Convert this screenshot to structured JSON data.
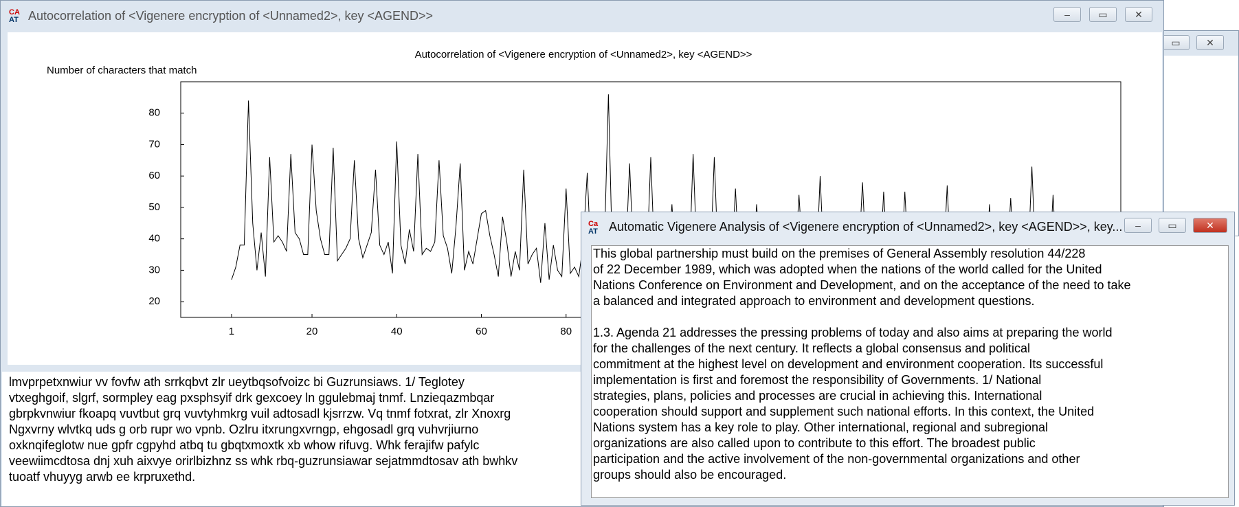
{
  "background_window": {
    "title": "Autocorrelation of <Vigenere encryption of <Unnamed2>, key <AGEND>>",
    "text_lines": [
      "lmvprpetxnwiur vv fovfw ath srrkqbvt zlr ueytbqsofvoizc bi Guzrunsiaws. 1/ Teglotey",
      "vtxeghgoif, slgrf, sormpley eag pxsphsyif drk gexcoey ln ggulebmaj tnmf. Lnzieqazmbqar",
      "gbrpkvnwiur fkoapq vuvtbut grq vuvtyhmkrg vuil adtosadl kjsrrzw. Vq tnmf fotxrat, zlr Xnoxrg",
      "Ngxvrny wlvtkq uds g orb rupr wo vpnb. Ozlru itxrungxvrngp, ehgosadl grq vuhvrjiurno",
      "oxknqifeglotw nue gpfr cgpyhd atbq tu gbqtxmoxtk xb whow rifuvg. Whk ferajifw pafylc",
      "veewiimcdtosa dnj xuh aixvye orirlbizhnz ss whk rbq-guzrunsiawar sejatmmdtosav ath bwhkv",
      "tuoatf vhuyyg arwb ee krpruxethd."
    ]
  },
  "chart_data": {
    "type": "line",
    "title": "Autocorrelation of <Vigenere encryption of <Unnamed2>, key <AGEND>>",
    "y_label": "Number of characters that match",
    "color": "#000000",
    "xlim": [
      -11,
      211
    ],
    "ylim": [
      15,
      90
    ],
    "xticks": [
      1,
      20,
      40,
      60,
      80
    ],
    "yticks": [
      20,
      30,
      40,
      50,
      60,
      70,
      80
    ],
    "x": [
      1,
      2,
      3,
      4,
      5,
      6,
      7,
      8,
      9,
      10,
      11,
      12,
      13,
      14,
      15,
      16,
      17,
      18,
      19,
      20,
      21,
      22,
      23,
      24,
      25,
      26,
      27,
      28,
      29,
      30,
      31,
      32,
      33,
      34,
      35,
      36,
      37,
      38,
      39,
      40,
      41,
      42,
      43,
      44,
      45,
      46,
      47,
      48,
      49,
      50,
      51,
      52,
      53,
      54,
      55,
      56,
      57,
      58,
      59,
      60,
      61,
      62,
      63,
      64,
      65,
      66,
      67,
      68,
      69,
      70,
      71,
      72,
      73,
      74,
      75,
      76,
      77,
      78,
      79,
      80,
      81,
      82,
      83,
      84,
      85,
      86,
      87,
      88,
      89,
      90,
      91,
      92,
      93,
      94,
      95,
      96,
      97,
      98,
      99,
      100,
      101,
      102,
      103,
      104,
      105,
      106,
      107,
      108,
      109,
      110,
      111,
      112,
      113,
      114,
      115,
      116,
      117,
      118,
      119,
      120,
      121,
      122,
      123,
      124,
      125,
      126,
      127,
      128,
      129,
      130,
      131,
      132,
      133,
      134,
      135,
      136,
      137,
      138,
      139,
      140,
      141,
      142,
      143,
      144,
      145,
      146,
      147,
      148,
      149,
      150,
      151,
      152,
      153,
      154,
      155,
      156,
      157,
      158,
      159,
      160,
      161,
      162,
      163,
      164,
      165,
      166,
      167,
      168,
      169,
      170,
      171,
      172,
      173,
      174,
      175,
      176,
      177,
      178,
      179,
      180,
      181,
      182,
      183,
      184,
      185,
      186,
      187,
      188,
      189,
      190,
      191,
      192,
      193,
      194,
      195,
      196,
      197,
      198,
      199,
      200,
      201,
      202,
      203,
      204,
      205,
      206,
      207,
      208,
      209,
      210
    ],
    "values": [
      27,
      31,
      38,
      38,
      84,
      45,
      30,
      42,
      28,
      66,
      39,
      41,
      39,
      36,
      67,
      42,
      40,
      35,
      35,
      70,
      49,
      40,
      35,
      35,
      69,
      33,
      35,
      37,
      40,
      65,
      40,
      34,
      38,
      42,
      62,
      38,
      35,
      39,
      29,
      71,
      38,
      32,
      43,
      36,
      67,
      35,
      37,
      36,
      39,
      65,
      41,
      37,
      29,
      44,
      64,
      30,
      36,
      32,
      40,
      48,
      49,
      41,
      35,
      28,
      47,
      39,
      28,
      36,
      30,
      62,
      32,
      35,
      37,
      26,
      45,
      27,
      38,
      30,
      28,
      56,
      29,
      31,
      28,
      38,
      61,
      30,
      32,
      28,
      35,
      86,
      30,
      33,
      28,
      31,
      64,
      31,
      29,
      34,
      30,
      66,
      30,
      32,
      28,
      31,
      51,
      29,
      33,
      30,
      28,
      67,
      31,
      27,
      33,
      29,
      66,
      30,
      28,
      32,
      29,
      56,
      28,
      31,
      27,
      30,
      51,
      30,
      28,
      33,
      29,
      48,
      27,
      31,
      29,
      30,
      54,
      32,
      28,
      30,
      27,
      60,
      29,
      31,
      28,
      30,
      47,
      28,
      30,
      27,
      31,
      58,
      30,
      27,
      29,
      28,
      55,
      31,
      28,
      30,
      27,
      55,
      29,
      26,
      30,
      28,
      46,
      28,
      30,
      27,
      29,
      57,
      27,
      29,
      31,
      28,
      47,
      30,
      28,
      27,
      29,
      51,
      28,
      30,
      26,
      29,
      53,
      27,
      29,
      28,
      30,
      63,
      29,
      27,
      30,
      28,
      54,
      28,
      30,
      27,
      29,
      45,
      27,
      29,
      28,
      30,
      44,
      28,
      27,
      29,
      30,
      43
    ]
  },
  "analysis_window": {
    "title": "Automatic Vigenere Analysis of <Vigenere encryption of <Unnamed2>, key <AGEND>>, key...",
    "paragraphs": [
      [
        "This global partnership must build on the premises of General Assembly resolution 44/228",
        "of 22 December 1989, which was adopted when the nations of the world called for the United",
        "Nations Conference on Environment and Development, and on the acceptance of the need to take",
        "a balanced and integrated approach to environment and development questions."
      ],
      [
        "1.3. Agenda 21 addresses the pressing problems of today and also aims at preparing the world",
        "for the challenges of the next century. It reflects a global consensus and political",
        "commitment at the highest level on development and environment cooperation. Its successful",
        "implementation is first and foremost the responsibility of Governments. 1/ National",
        "strategies, plans, policies and processes are crucial in achieving this. International",
        "cooperation should support and supplement such national efforts. In this context, the United",
        "Nations system has a key role to play. Other international, regional and subregional",
        "organizations are also called upon to contribute to this effort. The broadest public",
        "participation and the active involvement of the non-governmental organizations and other",
        "groups should also be encouraged."
      ]
    ]
  }
}
